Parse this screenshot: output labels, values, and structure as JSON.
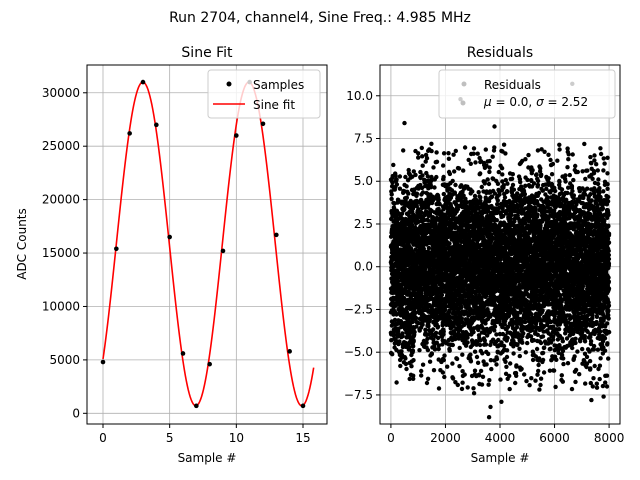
{
  "figure": {
    "suptitle": "Run 2704, channel4, Sine Freq.: 4.985 MHz"
  },
  "chart_data": [
    {
      "type": "scatter",
      "title": "Sine Fit",
      "xlabel": "Sample #",
      "ylabel": "ADC Counts",
      "xlim": [
        -1.2,
        16.8
      ],
      "ylim": [
        -1000,
        32600
      ],
      "xticks": [
        0,
        5,
        10,
        15
      ],
      "xtick_labels": [
        "0",
        "5",
        "10",
        "15"
      ],
      "yticks": [
        0,
        5000,
        10000,
        15000,
        20000,
        25000,
        30000
      ],
      "ytick_labels": [
        "0",
        "5000",
        "10000",
        "15000",
        "20000",
        "25000",
        "30000"
      ],
      "grid": true,
      "legend": {
        "placement": "top-right",
        "entries": [
          "Samples",
          "Sine fit"
        ]
      },
      "series": [
        {
          "name": "Samples",
          "kind": "scatter",
          "color": "#000000",
          "x": [
            0,
            1,
            2,
            3,
            4,
            5,
            6,
            7,
            8,
            9,
            10,
            11,
            12,
            13,
            14,
            15
          ],
          "y": [
            4800,
            15400,
            26200,
            31000,
            27000,
            16500,
            5600,
            700,
            4600,
            15200,
            26000,
            31000,
            27100,
            16700,
            5800,
            700
          ]
        },
        {
          "name": "Sine fit",
          "kind": "line",
          "color": "#ff0000",
          "model": {
            "offset": 15850,
            "amplitude": 15150,
            "period": 7.95,
            "phase_x": 1.0,
            "x_start": 0,
            "x_end": 15.8
          }
        }
      ]
    },
    {
      "type": "scatter",
      "title": "Residuals",
      "xlabel": "Sample #",
      "ylabel": "",
      "xlim": [
        -400,
        8400
      ],
      "ylim": [
        -9.2,
        11.8
      ],
      "xticks": [
        0,
        2000,
        4000,
        6000,
        8000
      ],
      "xtick_labels": [
        "0",
        "2000",
        "4000",
        "6000",
        "8000"
      ],
      "yticks": [
        -7.5,
        -5.0,
        -2.5,
        0.0,
        2.5,
        5.0,
        7.5,
        10.0
      ],
      "ytick_labels": [
        "−7.5",
        "−5.0",
        "−2.5",
        "0.0",
        "2.5",
        "5.0",
        "7.5",
        "10.0"
      ],
      "grid": true,
      "legend": {
        "placement": "top-right",
        "entries": [
          "Residuals",
          "μ = 0.0, σ = 2.52"
        ]
      },
      "series": [
        {
          "name": "Residuals",
          "kind": "scatter",
          "color": "#000000",
          "n_points": 8000,
          "x_range": [
            0,
            7999
          ],
          "mean": 0.0,
          "std": 2.52,
          "outliers": [
            {
              "x": 2550,
              "y": 9.8
            },
            {
              "x": 6650,
              "y": 10.7
            },
            {
              "x": 500,
              "y": 8.4
            },
            {
              "x": 3800,
              "y": 8.2
            },
            {
              "x": 3600,
              "y": -8.8
            },
            {
              "x": 3650,
              "y": -8.2
            },
            {
              "x": 3050,
              "y": -7.4
            },
            {
              "x": 4050,
              "y": -7.9
            },
            {
              "x": 7350,
              "y": -7.8
            },
            {
              "x": 7800,
              "y": -7.6
            }
          ]
        }
      ],
      "stats_text": {
        "mu": "0.0",
        "sigma": "2.52"
      }
    }
  ]
}
